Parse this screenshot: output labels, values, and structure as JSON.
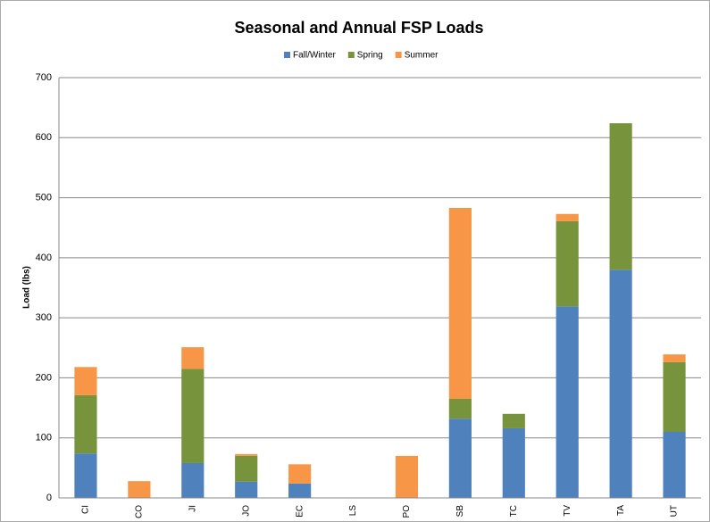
{
  "chart_data": {
    "type": "stacked_bar",
    "title": "Seasonal and Annual FSP Loads",
    "y_label": "Load (lbs)",
    "categories": [
      "CI",
      "CO",
      "JI",
      "JO",
      "EC",
      "LS",
      "PO",
      "SB",
      "TC",
      "TV",
      "TA",
      "UT"
    ],
    "series": [
      {
        "name": "Fall/Winter",
        "color": "#4f81bd",
        "values": [
          74,
          0,
          58,
          27,
          24,
          0,
          0,
          132,
          116,
          319,
          380,
          110
        ]
      },
      {
        "name": "Spring",
        "color": "#77933c",
        "values": [
          97,
          0,
          157,
          43,
          0,
          0,
          0,
          33,
          24,
          142,
          244,
          116
        ]
      },
      {
        "name": "Summer",
        "color": "#f79646",
        "values": [
          47,
          28,
          36,
          3,
          32,
          0,
          70,
          318,
          0,
          12,
          0,
          13
        ]
      }
    ],
    "ylim": [
      0,
      700
    ],
    "yticks": [
      0,
      100,
      200,
      300,
      400,
      500,
      600,
      700
    ],
    "grid": true,
    "legend": "top"
  }
}
